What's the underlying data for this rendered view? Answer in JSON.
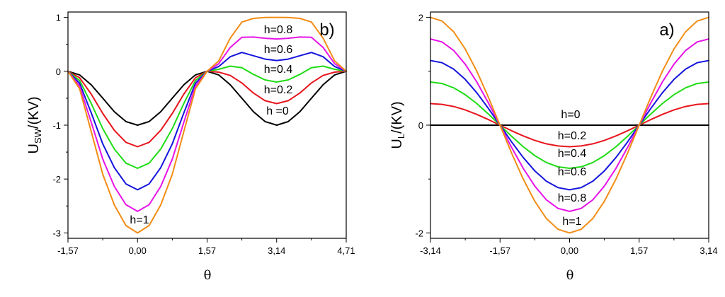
{
  "chart_data": [
    {
      "type": "line",
      "panel_label": "b)",
      "ylabel": {
        "main": "U",
        "sub": "SW",
        "rest": "/(KV)"
      },
      "xlabel": "θ",
      "xlim": [
        -1.5708,
        4.7124
      ],
      "ylim": [
        -3.1,
        1.1
      ],
      "x_tick_values": [
        -1.5708,
        0,
        1.5708,
        3.1416,
        4.7124
      ],
      "x_tick_labels": [
        "-1,57",
        "0,00",
        "1,57",
        "3,14",
        "4,71"
      ],
      "y_tick_values": [
        -3,
        -2,
        -1,
        0,
        1
      ],
      "y_tick_labels": [
        "-3",
        "-2",
        "-1",
        "0",
        "1"
      ],
      "x": [
        -1.571,
        -1.309,
        -1.047,
        -0.785,
        -0.524,
        -0.262,
        0.0,
        0.262,
        0.524,
        0.785,
        1.047,
        1.309,
        1.571,
        1.833,
        2.094,
        2.356,
        2.618,
        2.88,
        3.142,
        3.403,
        3.665,
        3.927,
        4.189,
        4.451,
        4.712
      ],
      "series": [
        {
          "h": 0,
          "color": "#000000",
          "values": [
            0.0,
            -0.067,
            -0.25,
            -0.5,
            -0.75,
            -0.933,
            -1.0,
            -0.933,
            -0.75,
            -0.5,
            -0.25,
            -0.067,
            0.0,
            -0.067,
            -0.25,
            -0.5,
            -0.75,
            -0.933,
            -1.0,
            -0.933,
            -0.75,
            -0.5,
            -0.25,
            -0.067,
            0.0
          ]
        },
        {
          "h": 0.2,
          "color": "#e8141c",
          "values": [
            0.0,
            -0.119,
            -0.423,
            -0.783,
            -1.096,
            -1.319,
            -1.4,
            -1.319,
            -1.096,
            -0.783,
            -0.423,
            -0.119,
            0.0,
            -0.015,
            -0.077,
            -0.217,
            -0.404,
            -0.546,
            -0.6,
            -0.546,
            -0.404,
            -0.217,
            -0.077,
            -0.015,
            0.0
          ]
        },
        {
          "h": 0.4,
          "color": "#1edc14",
          "values": [
            0.0,
            -0.171,
            -0.596,
            -1.066,
            -1.442,
            -1.705,
            -1.8,
            -1.705,
            -1.442,
            -1.066,
            -0.596,
            -0.171,
            0.0,
            0.037,
            0.096,
            0.066,
            -0.058,
            -0.16,
            -0.2,
            -0.16,
            -0.058,
            0.066,
            0.096,
            0.037,
            0.0
          ]
        },
        {
          "h": 0.6,
          "color": "#1414dc",
          "values": [
            0.0,
            -0.222,
            -0.77,
            -1.349,
            -1.789,
            -2.091,
            -2.2,
            -2.091,
            -1.789,
            -1.349,
            -0.77,
            -0.222,
            0.0,
            0.088,
            0.27,
            0.349,
            0.289,
            0.226,
            0.2,
            0.226,
            0.289,
            0.349,
            0.27,
            0.088,
            0.0
          ]
        },
        {
          "h": 0.8,
          "color": "#e614e6",
          "values": [
            0.0,
            -0.274,
            -0.943,
            -1.632,
            -2.136,
            -2.477,
            -2.6,
            -2.477,
            -2.136,
            -1.632,
            -0.943,
            -0.274,
            0.0,
            0.14,
            0.443,
            0.632,
            0.636,
            0.613,
            0.6,
            0.613,
            0.636,
            0.632,
            0.443,
            0.14,
            0.0
          ]
        },
        {
          "h": 1,
          "color": "#f28c14",
          "values": [
            0.0,
            -0.326,
            -1.116,
            -1.914,
            -2.482,
            -2.864,
            -3.0,
            -2.864,
            -2.482,
            -1.914,
            -1.116,
            -0.326,
            0.0,
            0.192,
            0.616,
            0.914,
            0.982,
            0.999,
            1.0,
            0.999,
            0.982,
            0.914,
            0.616,
            0.192,
            0.0
          ]
        }
      ],
      "annotations": [
        "h=0.8",
        "h=0.6",
        "h=0.4",
        "h=0.2",
        "h =0",
        "h=1"
      ]
    },
    {
      "type": "line",
      "panel_label": "a)",
      "ylabel": {
        "main": "U",
        "sub": "L",
        "rest": "/(KV)"
      },
      "xlabel": "θ",
      "xlim": [
        -3.1416,
        3.1416
      ],
      "ylim": [
        -2.1,
        2.1
      ],
      "x_tick_values": [
        -3.1416,
        -1.5708,
        0,
        1.5708,
        3.1416
      ],
      "x_tick_labels": [
        "-3,14",
        "-1,57",
        "0,00",
        "1,57",
        "3,14"
      ],
      "y_tick_values": [
        -2,
        0,
        2
      ],
      "y_tick_labels": [
        "-2",
        "0",
        "2"
      ],
      "x": [
        -3.142,
        -2.88,
        -2.618,
        -2.356,
        -2.094,
        -1.833,
        -1.571,
        -1.309,
        -1.047,
        -0.785,
        -0.524,
        -0.262,
        0.0,
        0.262,
        0.524,
        0.785,
        1.047,
        1.309,
        1.571,
        1.833,
        2.094,
        2.356,
        2.618,
        2.88,
        3.142
      ],
      "series": [
        {
          "h": 0,
          "color": "#000000",
          "values": [
            0.0,
            0.0,
            0.0,
            0.0,
            0.0,
            0.0,
            0.0,
            0.0,
            0.0,
            0.0,
            0.0,
            0.0,
            0.0,
            0.0,
            0.0,
            0.0,
            0.0,
            0.0,
            0.0,
            0.0,
            0.0,
            0.0,
            0.0,
            0.0,
            0.0
          ]
        },
        {
          "h": 0.2,
          "color": "#e8141c",
          "values": [
            0.4,
            0.386,
            0.346,
            0.283,
            0.2,
            0.104,
            0.0,
            -0.104,
            -0.2,
            -0.283,
            -0.346,
            -0.386,
            -0.4,
            -0.386,
            -0.346,
            -0.283,
            -0.2,
            -0.104,
            0.0,
            0.104,
            0.2,
            0.283,
            0.346,
            0.386,
            0.4
          ]
        },
        {
          "h": 0.4,
          "color": "#1edc14",
          "values": [
            0.8,
            0.773,
            0.693,
            0.566,
            0.4,
            0.207,
            0.0,
            -0.207,
            -0.4,
            -0.566,
            -0.693,
            -0.773,
            -0.8,
            -0.773,
            -0.693,
            -0.566,
            -0.4,
            -0.207,
            0.0,
            0.207,
            0.4,
            0.566,
            0.693,
            0.773,
            0.8
          ]
        },
        {
          "h": 0.6,
          "color": "#1414dc",
          "values": [
            1.2,
            1.159,
            1.039,
            0.849,
            0.6,
            0.311,
            0.0,
            -0.311,
            -0.6,
            -0.849,
            -1.039,
            -1.159,
            -1.2,
            -1.159,
            -1.039,
            -0.849,
            -0.6,
            -0.311,
            0.0,
            0.311,
            0.6,
            0.849,
            1.039,
            1.159,
            1.2
          ]
        },
        {
          "h": 0.8,
          "color": "#e614e6",
          "values": [
            1.6,
            1.545,
            1.386,
            1.131,
            0.8,
            0.414,
            0.0,
            -0.414,
            -0.8,
            -1.131,
            -1.386,
            -1.545,
            -1.6,
            -1.545,
            -1.386,
            -1.131,
            -0.8,
            -0.414,
            0.0,
            0.414,
            0.8,
            1.131,
            1.386,
            1.545,
            1.6
          ]
        },
        {
          "h": 1,
          "color": "#f28c14",
          "values": [
            2.0,
            1.932,
            1.732,
            1.414,
            1.0,
            0.518,
            0.0,
            -0.518,
            -1.0,
            -1.414,
            -1.732,
            -1.932,
            -2.0,
            -1.932,
            -1.732,
            -1.414,
            -1.0,
            -0.518,
            0.0,
            0.518,
            1.0,
            1.414,
            1.732,
            1.932,
            2.0
          ]
        }
      ],
      "annotations": [
        "h=0",
        "h=0.2",
        "h=0.4",
        "h=0.6",
        "h=0.8",
        "h=1"
      ]
    }
  ]
}
